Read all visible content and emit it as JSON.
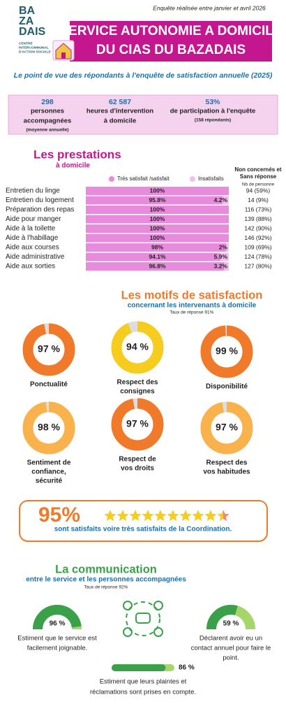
{
  "header": {
    "survey_note": "Enquête réalisée entre janvier et avril 2026",
    "logo_lines": [
      "BA",
      "ZA",
      "DAIS"
    ],
    "logo_caption": [
      "CENTRE",
      "INTERCOMMUNAL",
      "D'ACTION SOCIALE"
    ],
    "title_lines": [
      "SERVICE AUTONOMIE A DOMICILE",
      "DU CIAS DU BAZADAIS"
    ]
  },
  "subtitle": "Le point de vue des répondants à l'enquête de satisfaction annuelle (2025)",
  "stats": [
    {
      "value": "298",
      "lines": [
        "personnes",
        "accompagnées"
      ],
      "note": "(moyenne annuelle)"
    },
    {
      "value": "62 587",
      "lines": [
        "heures d'intervention",
        "à domicile"
      ]
    },
    {
      "value": "53%",
      "lines": [
        "de participation à l'enquête"
      ],
      "note": "(158 répondants)"
    }
  ],
  "prestations": {
    "title": "Les prestations",
    "subtitle": "à domicile",
    "legend": [
      "Très satisfait /satisfait",
      "Insatisfaits"
    ],
    "nc_header": [
      "Non concernés et",
      "Sans réponse"
    ],
    "nc_unit": "Nb de personne",
    "rows": [
      {
        "name": "Entretien du linge",
        "satisfied": {
          "value": 100,
          "label": "100%"
        },
        "nc": "94 (59%)"
      },
      {
        "name": "Entretien du logement",
        "satisfied": {
          "value": 95.8,
          "label": "95.8%"
        },
        "unsatisfied": {
          "value": 4.2,
          "label": "4.2%"
        },
        "nc": "14 (9%)"
      },
      {
        "name": "Préparation des repas",
        "satisfied": {
          "value": 100,
          "label": "100%"
        },
        "nc": "116 (73%)"
      },
      {
        "name": "Aide pour manger",
        "satisfied": {
          "value": 100,
          "label": "100%"
        },
        "nc": "139 (88%)"
      },
      {
        "name": "Aide à la toilette",
        "satisfied": {
          "value": 100,
          "label": "100%"
        },
        "nc": "142 (90%)"
      },
      {
        "name": "Aide à l'habillage",
        "satisfied": {
          "value": 100,
          "label": "100%"
        },
        "nc": "146 (92%)"
      },
      {
        "name": "Aide aux courses",
        "satisfied": {
          "value": 98,
          "label": "98%"
        },
        "unsatisfied": {
          "value": 2,
          "label": "2%"
        },
        "nc": "109 (69%)"
      },
      {
        "name": "Aide administrative",
        "satisfied": {
          "value": 94.1,
          "label": "94.1%"
        },
        "unsatisfied": {
          "value": 5.9,
          "label": "5.9%"
        },
        "nc": "124 (78%)"
      },
      {
        "name": "Aide aux sorties",
        "satisfied": {
          "value": 96.8,
          "label": "96.8%"
        },
        "unsatisfied": {
          "value": 3.2,
          "label": "3.2%"
        },
        "nc": "127 (80%)"
      }
    ]
  },
  "motifs": {
    "title": "Les motifs de satisfaction",
    "subtitle": "concernant les intervenants à domicile",
    "note": "Taux de réponse 91%",
    "items": [
      {
        "value": 97,
        "label": "97 %",
        "name": [
          "Ponctualité"
        ],
        "color": "#f07a2a"
      },
      {
        "value": 94,
        "label": "94 %",
        "name": [
          "Respect des",
          "consignes"
        ],
        "color": "#f6cd1f"
      },
      {
        "value": 99,
        "label": "99 %",
        "name": [
          "Disponibilité"
        ],
        "color": "#f07a2a"
      },
      {
        "value": 98,
        "label": "98 %",
        "name": [
          "Sentiment de",
          "confiance,",
          "sécurité"
        ],
        "color": "#f9b24c"
      },
      {
        "value": 97,
        "label": "97 %",
        "name": [
          "Respect de",
          "vos droits"
        ],
        "color": "#f07a2a"
      },
      {
        "value": 97,
        "label": "97 %",
        "name": [
          "Respect des",
          "vos habitudes"
        ],
        "color": "#f9b24c"
      }
    ]
  },
  "coordination": {
    "value": 95,
    "label": "95%",
    "text": "sont satisfaits voire très satisfaits de la Coordination."
  },
  "communication": {
    "title": "La communication",
    "subtitle": "entre le service et les personnes accompagnées",
    "note": "Taux de réponse 92%",
    "gauges": [
      {
        "value": 96,
        "label": "96 %",
        "lines": [
          "Estiment que le service est",
          "facilement joignable."
        ]
      },
      {
        "value": 59,
        "label": "59 %",
        "lines": [
          "Déclarent avoir eu un",
          "contact annuel pour faire le",
          "point."
        ]
      }
    ],
    "bar": {
      "value": 86,
      "label": "86 %",
      "lines": [
        "Estiment que leurs plaintes et",
        "réclamations sont prises en compte."
      ]
    }
  }
}
